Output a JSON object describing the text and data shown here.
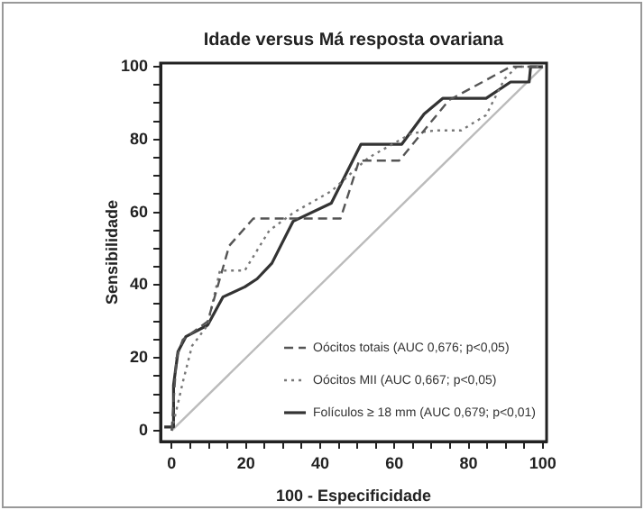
{
  "chart_data": {
    "type": "line",
    "title": "Idade versus Má resposta ovariana",
    "xlabel": "100 - Especificidade",
    "ylabel": "Sensibilidade",
    "xlim": [
      -3,
      101
    ],
    "ylim": [
      -3,
      101
    ],
    "xticks": [
      0,
      {
        "value": 5,
        "label": null
      },
      {
        "value": 10,
        "label": null
      },
      {
        "value": 15,
        "label": null
      },
      20,
      {
        "value": 25,
        "label": null
      },
      {
        "value": 30,
        "label": null
      },
      {
        "value": 35,
        "label": null
      },
      40,
      {
        "value": 45,
        "label": null
      },
      {
        "value": 50,
        "label": null
      },
      {
        "value": 55,
        "label": null
      },
      60,
      {
        "value": 65,
        "label": null
      },
      {
        "value": 70,
        "label": null
      },
      {
        "value": 75,
        "label": null
      },
      80,
      {
        "value": 85,
        "label": null
      },
      {
        "value": 90,
        "label": null
      },
      {
        "value": 95,
        "label": null
      },
      100
    ],
    "yticks": [
      0,
      {
        "value": 5,
        "label": null
      },
      {
        "value": 10,
        "label": null
      },
      {
        "value": 15,
        "label": null
      },
      20,
      {
        "value": 25,
        "label": null
      },
      {
        "value": 30,
        "label": null
      },
      {
        "value": 35,
        "label": null
      },
      40,
      {
        "value": 45,
        "label": null
      },
      {
        "value": 50,
        "label": null
      },
      {
        "value": 55,
        "label": null
      },
      60,
      {
        "value": 65,
        "label": null
      },
      {
        "value": 70,
        "label": null
      },
      {
        "value": 75,
        "label": null
      },
      80,
      {
        "value": 85,
        "label": null
      },
      {
        "value": 90,
        "label": null
      },
      {
        "value": 95,
        "label": null
      },
      100
    ],
    "grid": false,
    "legend": "bottom right",
    "marker": "none",
    "series": [
      {
        "name": "Oócitos totais (AUC 0,676; p<0,05)",
        "color": "#555555",
        "line_style": "dashed",
        "x": [
          0,
          1.3,
          3,
          9.7,
          15.5,
          22,
          45.5,
          50.5,
          61.3,
          74.7,
          91.3,
          100
        ],
        "values": [
          0,
          20,
          25,
          30,
          50.8,
          58.3,
          58.3,
          74.2,
          74.2,
          90.8,
          100,
          100
        ]
      },
      {
        "name": "Oócitos MII (AUC 0,667; p<0,05)",
        "color": "#777777",
        "line_style": "dotted",
        "x": [
          0,
          3,
          5.5,
          9.7,
          13,
          19.7,
          26.3,
          33,
          43,
          53,
          64.7,
          71.3,
          78,
          84.7,
          89.7,
          93,
          100
        ],
        "values": [
          0,
          13.3,
          23.3,
          29,
          44,
          44,
          55,
          60,
          65.8,
          75,
          81.7,
          82.5,
          82.5,
          86.7,
          96.7,
          100,
          100
        ]
      },
      {
        "name": "Folículos ≥ 18 mm (AUC 0,679; p<0,01)",
        "color": "#333333",
        "line_style": "solid",
        "x": [
          -2,
          0.5,
          0.5,
          1.7,
          3.8,
          9.7,
          13.8,
          19.7,
          23,
          27,
          32.7,
          43,
          51,
          62,
          68,
          73,
          84.7,
          91.3,
          96.3,
          96.7,
          100
        ],
        "values": [
          1,
          1,
          12.5,
          21.7,
          25.8,
          29,
          36.7,
          39.5,
          41.7,
          46,
          57.5,
          62.5,
          78.7,
          78.7,
          87,
          91.3,
          91.3,
          95.8,
          95.8,
          100,
          100
        ]
      },
      {
        "color": "#bbbbbb",
        "line_style": "solid",
        "x": [
          0,
          100
        ],
        "values": [
          0,
          100
        ]
      }
    ]
  }
}
